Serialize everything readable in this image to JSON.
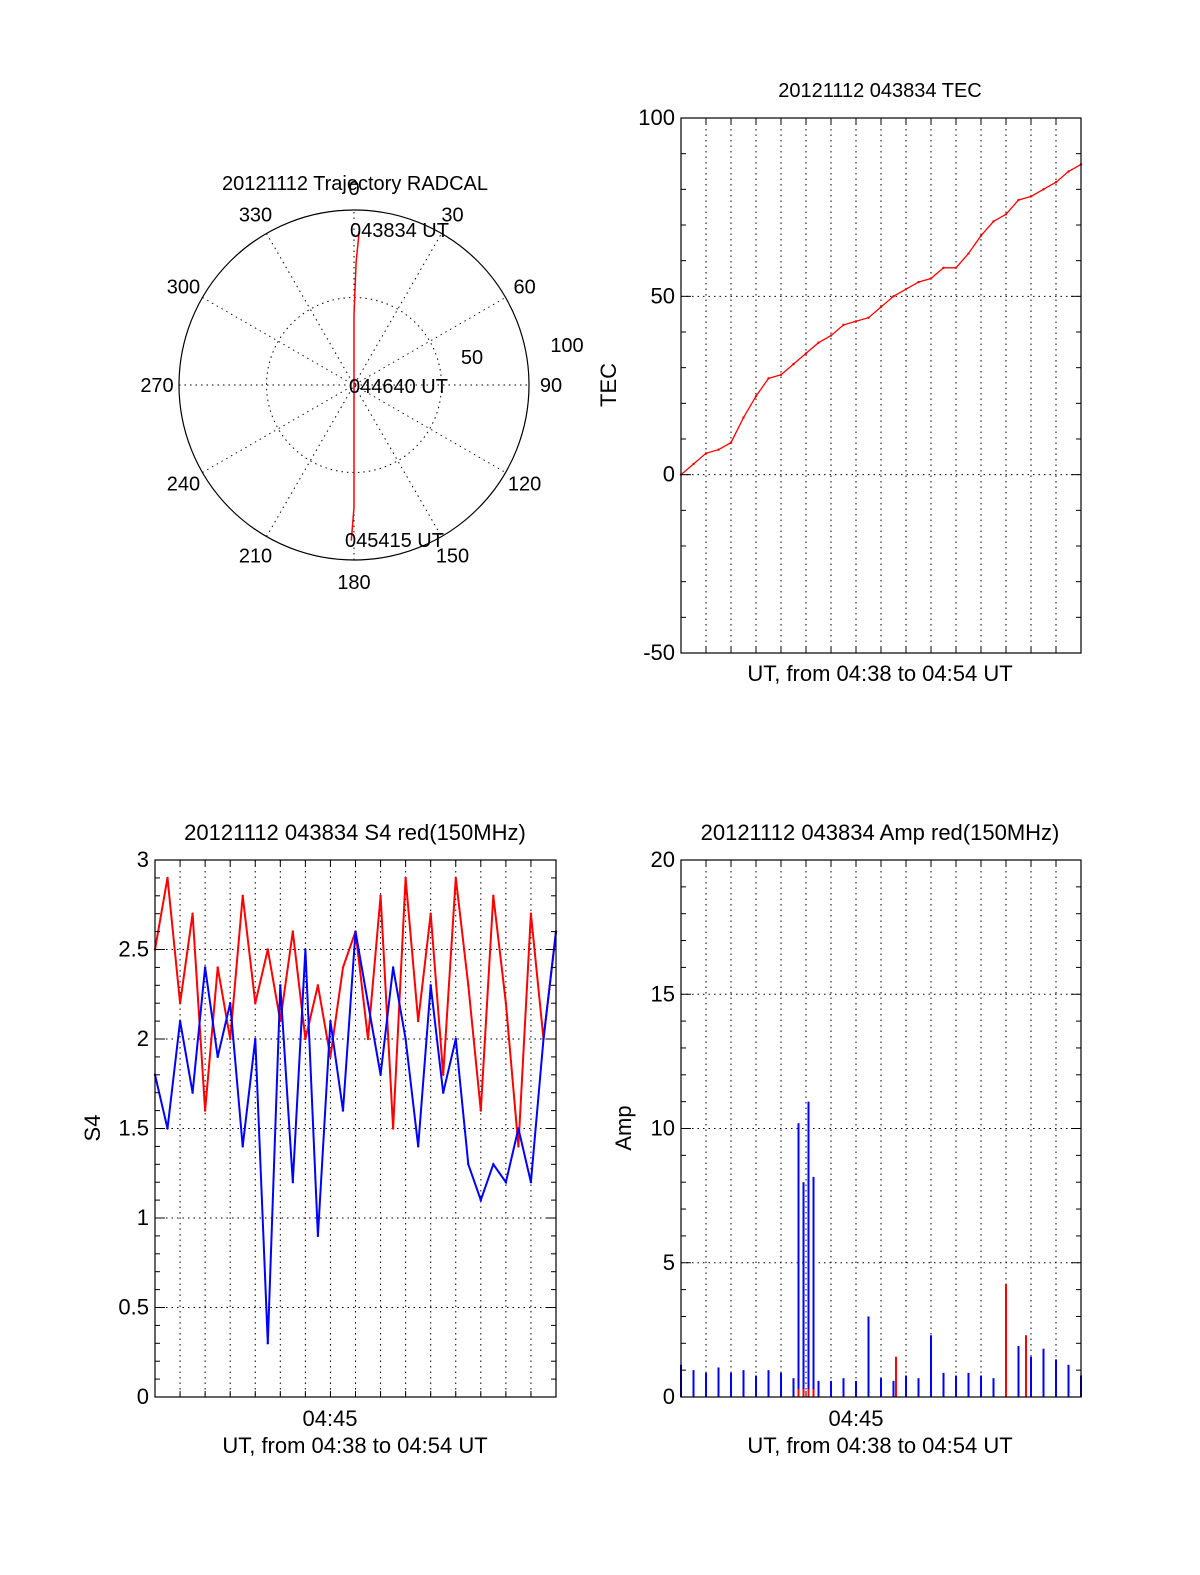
{
  "colors": {
    "red": "#ff0000",
    "blue": "#0000ff",
    "axis": "#000000"
  },
  "chart_data": [
    {
      "id": "trajectory",
      "type": "scatter",
      "title": "20121112 Trajectory RADCAL",
      "azimuth_labels": [
        "0",
        "30",
        "60",
        "90",
        "120",
        "150",
        "180",
        "210",
        "240",
        "270",
        "300",
        "330"
      ],
      "radial_labels": [
        "50",
        "100"
      ],
      "rlim": [
        0,
        100
      ],
      "grid": true,
      "annotations": [
        "043834 UT",
        "044640 UT",
        "045415 UT"
      ],
      "series": [
        {
          "color": "red",
          "azimuth_deg": [
            2,
            1,
            0,
            0,
            180,
            180,
            181
          ],
          "zenith": [
            89,
            70,
            40,
            0,
            40,
            70,
            89
          ]
        }
      ]
    },
    {
      "id": "tec",
      "type": "line",
      "title": "20121112 043834 TEC",
      "xlabel": "UT, from 04:38 to 04:54 UT",
      "ylabel": "TEC",
      "ylim": [
        -50,
        100
      ],
      "yticks": [
        "-50",
        "0",
        "50",
        "100"
      ],
      "xlim_min": [
        0,
        16
      ],
      "grid": true,
      "series": [
        {
          "color": "red",
          "x_min": [
            0,
            0.5,
            1,
            1.5,
            2,
            2.5,
            3,
            3.5,
            4,
            4.5,
            5,
            5.5,
            6,
            6.5,
            7,
            7.5,
            8,
            8.5,
            9,
            9.5,
            10,
            10.5,
            11,
            11.5,
            12,
            12.5,
            13,
            13.5,
            14,
            14.5,
            15,
            15.5,
            16
          ],
          "y": [
            0,
            3,
            6,
            7,
            9,
            16,
            22,
            27,
            28,
            31,
            34,
            37,
            39,
            42,
            43,
            44,
            47,
            50,
            52,
            54,
            55,
            58,
            58,
            62,
            67,
            71,
            73,
            77,
            78,
            80,
            82,
            85,
            87
          ]
        }
      ]
    },
    {
      "id": "s4",
      "type": "line",
      "title": "20121112 043834 S4 red(150MHz)",
      "xlabel": "UT, from 04:38 to 04:54 UT",
      "ylabel": "S4",
      "ylim": [
        0,
        3
      ],
      "yticks": [
        "0",
        "0.5",
        "1",
        "1.5",
        "2",
        "2.5",
        "3"
      ],
      "xtick_label": "04:45",
      "xlim_min": [
        0,
        16
      ],
      "grid": true,
      "series": [
        {
          "color": "red",
          "x_min": [
            0,
            0.5,
            1,
            1.5,
            2,
            2.5,
            3,
            3.5,
            4,
            4.5,
            5,
            5.5,
            6,
            6.5,
            7,
            7.5,
            8,
            8.5,
            9,
            9.5,
            10,
            10.5,
            11,
            11.5,
            12,
            12.5,
            13,
            13.5,
            14,
            14.5,
            15,
            15.5,
            16
          ],
          "y": [
            2.5,
            2.9,
            2.2,
            2.7,
            1.6,
            2.4,
            2.0,
            2.8,
            2.2,
            2.5,
            2.1,
            2.6,
            2.0,
            2.3,
            1.9,
            2.4,
            2.6,
            2.0,
            2.8,
            1.5,
            2.9,
            2.1,
            2.7,
            1.8,
            2.9,
            2.3,
            1.6,
            2.8,
            2.2,
            1.4,
            2.7,
            2.0,
            2.6
          ]
        },
        {
          "color": "blue",
          "x_min": [
            0,
            0.5,
            1,
            1.5,
            2,
            2.5,
            3,
            3.5,
            4,
            4.5,
            5,
            5.5,
            6,
            6.5,
            7,
            7.5,
            8,
            8.5,
            9,
            9.5,
            10,
            10.5,
            11,
            11.5,
            12,
            12.5,
            13,
            13.5,
            14,
            14.5,
            15,
            15.5,
            16
          ],
          "y": [
            1.8,
            1.5,
            2.1,
            1.7,
            2.4,
            1.9,
            2.2,
            1.4,
            2.0,
            0.3,
            2.3,
            1.2,
            2.5,
            0.9,
            2.1,
            1.6,
            2.6,
            2.2,
            1.8,
            2.4,
            2.0,
            1.4,
            2.3,
            1.7,
            2.0,
            1.3,
            1.1,
            1.3,
            1.2,
            1.5,
            1.2,
            2.0,
            2.6
          ]
        }
      ]
    },
    {
      "id": "amp",
      "type": "line",
      "title": "20121112 043834 Amp red(150MHz)",
      "xlabel": "UT, from 04:38 to 04:54 UT",
      "ylabel": "Amp",
      "ylim": [
        0,
        20
      ],
      "yticks": [
        "0",
        "5",
        "10",
        "15",
        "20"
      ],
      "xtick_label": "04:45",
      "xlim_min": [
        0,
        16
      ],
      "grid": true,
      "series": [
        {
          "color": "blue",
          "x_min": [
            0,
            0.5,
            1,
            1.5,
            2,
            2.5,
            3,
            3.5,
            4,
            4.5,
            4.7,
            4.9,
            5.1,
            5.3,
            5.5,
            6,
            6.5,
            7,
            7.5,
            8,
            8.5,
            9,
            9.5,
            10,
            10.5,
            11,
            11.5,
            12,
            12.5,
            13,
            13.5,
            14,
            14.5,
            15,
            15.5,
            16
          ],
          "y": [
            1.2,
            1.0,
            0.9,
            1.1,
            0.9,
            1.0,
            0.8,
            1.0,
            0.9,
            0.7,
            10.2,
            8.0,
            11.0,
            8.2,
            0.6,
            0.6,
            0.7,
            0.6,
            3.0,
            0.7,
            0.6,
            0.8,
            0.7,
            2.3,
            0.9,
            0.8,
            0.9,
            0.8,
            0.7,
            1.6,
            1.9,
            1.5,
            1.8,
            1.4,
            1.2,
            0.8
          ]
        },
        {
          "color": "red",
          "x_min": [
            4.7,
            4.9,
            5.1,
            5.3,
            8.6,
            13.0,
            13.8
          ],
          "y": [
            0.3,
            0.3,
            0.3,
            0.3,
            1.5,
            4.2,
            2.3
          ]
        }
      ]
    }
  ]
}
